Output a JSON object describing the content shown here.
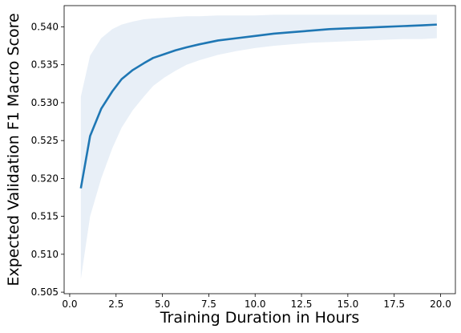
{
  "chart_data": {
    "type": "line",
    "title": "",
    "xlabel": "Training Duration in Hours",
    "ylabel": "Expected Validation F1 Macro Score",
    "xlim": [
      -0.3,
      20.8
    ],
    "ylim": [
      0.5048,
      0.5428
    ],
    "xticks": [
      {
        "value": 0.0,
        "label": "0.0"
      },
      {
        "value": 2.5,
        "label": "2.5"
      },
      {
        "value": 5.0,
        "label": "5.0"
      },
      {
        "value": 7.5,
        "label": "7.5"
      },
      {
        "value": 10.0,
        "label": "10.0"
      },
      {
        "value": 12.5,
        "label": "12.5"
      },
      {
        "value": 15.0,
        "label": "15.0"
      },
      {
        "value": 17.5,
        "label": "17.5"
      },
      {
        "value": 20.0,
        "label": "20.0"
      }
    ],
    "yticks": [
      {
        "value": 0.505,
        "label": "0.505"
      },
      {
        "value": 0.51,
        "label": "0.510"
      },
      {
        "value": 0.515,
        "label": "0.515"
      },
      {
        "value": 0.52,
        "label": "0.520"
      },
      {
        "value": 0.525,
        "label": "0.525"
      },
      {
        "value": 0.53,
        "label": "0.530"
      },
      {
        "value": 0.535,
        "label": "0.535"
      },
      {
        "value": 0.54,
        "label": "0.540"
      }
    ],
    "grid": false,
    "series": [
      {
        "color": "#1f77b4",
        "band_color": "#e8eff7",
        "x": [
          0.6,
          1.1,
          1.7,
          2.3,
          2.8,
          3.4,
          4.0,
          4.5,
          5.1,
          5.7,
          6.3,
          7.0,
          8.0,
          9.0,
          10.0,
          11.0,
          12.0,
          13.0,
          14.0,
          15.0,
          16.0,
          17.0,
          18.0,
          19.0,
          19.8
        ],
        "y": [
          0.5187,
          0.5256,
          0.5292,
          0.5315,
          0.5331,
          0.5343,
          0.5352,
          0.5359,
          0.5364,
          0.5369,
          0.5373,
          0.5377,
          0.5382,
          0.5385,
          0.5388,
          0.5391,
          0.5393,
          0.5395,
          0.5397,
          0.5398,
          0.5399,
          0.54,
          0.5401,
          0.5402,
          0.5403
        ],
        "lower": [
          0.5067,
          0.515,
          0.52,
          0.524,
          0.5267,
          0.529,
          0.5308,
          0.5322,
          0.5333,
          0.5342,
          0.535,
          0.5356,
          0.5363,
          0.5368,
          0.5372,
          0.5375,
          0.5377,
          0.5379,
          0.538,
          0.5381,
          0.5382,
          0.5383,
          0.5384,
          0.5384,
          0.5385
        ],
        "upper": [
          0.5308,
          0.5362,
          0.5385,
          0.5397,
          0.5403,
          0.5407,
          0.541,
          0.5411,
          0.5412,
          0.5413,
          0.5414,
          0.5414,
          0.5415,
          0.5415,
          0.5415,
          0.5416,
          0.5416,
          0.5416,
          0.5416,
          0.5416,
          0.5416,
          0.5416,
          0.5416,
          0.5416,
          0.5416
        ]
      }
    ]
  }
}
